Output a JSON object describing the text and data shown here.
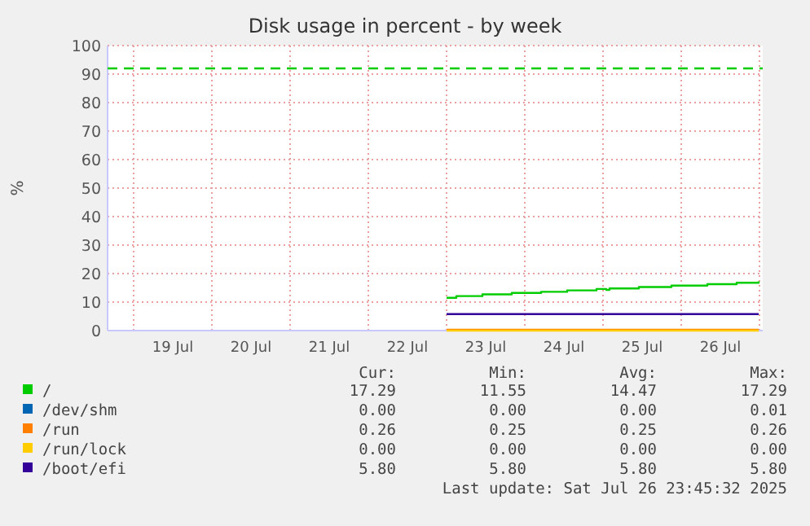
{
  "chart_data": {
    "type": "step",
    "title": "Disk usage in percent - by week",
    "ylabel": "%",
    "xlim": [
      "2025-07-18T16:00",
      "2025-07-27T01:00"
    ],
    "xticks": [
      {
        "value": "2025-07-19T00:00",
        "label": null
      },
      {
        "value": "2025-07-19T12:00",
        "label": "19 Jul"
      },
      {
        "value": "2025-07-20T00:00",
        "label": null
      },
      {
        "value": "2025-07-20T12:00",
        "label": "20 Jul"
      },
      {
        "value": "2025-07-21T00:00",
        "label": null
      },
      {
        "value": "2025-07-21T12:00",
        "label": "21 Jul"
      },
      {
        "value": "2025-07-22T00:00",
        "label": null
      },
      {
        "value": "2025-07-22T12:00",
        "label": "22 Jul"
      },
      {
        "value": "2025-07-23T00:00",
        "label": null
      },
      {
        "value": "2025-07-23T12:00",
        "label": "23 Jul"
      },
      {
        "value": "2025-07-24T00:00",
        "label": null
      },
      {
        "value": "2025-07-24T12:00",
        "label": "24 Jul"
      },
      {
        "value": "2025-07-25T00:00",
        "label": null
      },
      {
        "value": "2025-07-25T12:00",
        "label": "25 Jul"
      },
      {
        "value": "2025-07-26T00:00",
        "label": null
      },
      {
        "value": "2025-07-26T12:00",
        "label": "26 Jul"
      },
      {
        "value": "2025-07-27T00:00",
        "label": null
      }
    ],
    "ylim": [
      0,
      100
    ],
    "yticks": [
      0,
      10,
      20,
      30,
      40,
      50,
      60,
      70,
      80,
      90,
      100
    ],
    "grid": true,
    "legend": "bottom",
    "series": [
      {
        "name": "/",
        "color": "#00cc00",
        "x": [
          "2025-07-23T00:00",
          "2025-07-23T03:00",
          "2025-07-23T11:00",
          "2025-07-23T20:00",
          "2025-07-24T05:00",
          "2025-07-24T13:00",
          "2025-07-24T22:00",
          "2025-07-25T01:00",
          "2025-07-25T02:00",
          "2025-07-25T11:00",
          "2025-07-25T21:00",
          "2025-07-26T08:00",
          "2025-07-26T17:00",
          "2025-07-26T23:45"
        ],
        "values": [
          11.5,
          12.1,
          12.7,
          13.2,
          13.6,
          14.1,
          14.6,
          14.3,
          14.8,
          15.3,
          15.8,
          16.3,
          16.8,
          17.3
        ]
      },
      {
        "name": "/dev/shm",
        "color": "#0066b3",
        "values": [
          null,
          null
        ]
      },
      {
        "name": "/run",
        "color": "#ff8000",
        "x": [
          "2025-07-23T00:00",
          "2025-07-26T23:45"
        ],
        "values": [
          0.3,
          0.3
        ]
      },
      {
        "name": "/run/lock",
        "color": "#ffcc00",
        "x": [
          "2025-07-23T00:00",
          "2025-07-26T23:45"
        ],
        "values": [
          0,
          0
        ]
      },
      {
        "name": "/boot/efi",
        "color": "#330099",
        "x": [
          "2025-07-23T00:00",
          "2025-07-26T23:45"
        ],
        "values": [
          5.8,
          5.8
        ]
      }
    ],
    "ref_lines": [
      {
        "axis": "y",
        "value": 92,
        "color": "#00cc00",
        "line_style": "dashed"
      }
    ],
    "annotations": [
      "Cur:",
      "Min:",
      "Avg:",
      "Max:",
      "17.29",
      "11.55",
      "14.47",
      "17.29",
      "0.00",
      "0.00",
      "0.00",
      "0.01",
      "0.26",
      "0.25",
      "0.25",
      "0.26",
      "0.00",
      "0.00",
      "0.00",
      "0.00",
      "5.80",
      "5.80",
      "5.80",
      "5.80",
      "Last update: Sat Jul 26 23:45:32 2025"
    ]
  }
}
